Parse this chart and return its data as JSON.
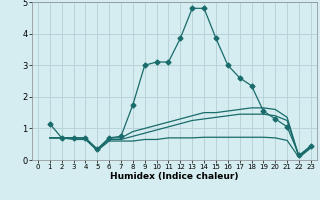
{
  "title": "",
  "xlabel": "Humidex (Indice chaleur)",
  "ylabel": "",
  "bg_color": "#d5edf0",
  "line_color": "#1a6b6b",
  "grid_color": "#b8d4d8",
  "xlim": [
    -0.5,
    23.5
  ],
  "ylim": [
    0,
    5
  ],
  "xticks": [
    0,
    1,
    2,
    3,
    4,
    5,
    6,
    7,
    8,
    9,
    10,
    11,
    12,
    13,
    14,
    15,
    16,
    17,
    18,
    19,
    20,
    21,
    22,
    23
  ],
  "yticks": [
    0,
    1,
    2,
    3,
    4,
    5
  ],
  "lines": [
    {
      "x": [
        1,
        2,
        3,
        4,
        5,
        6,
        7,
        8,
        9,
        10,
        11,
        12,
        13,
        14,
        15,
        16,
        17,
        18,
        19,
        20,
        21,
        22,
        23
      ],
      "y": [
        1.15,
        0.7,
        0.7,
        0.7,
        0.35,
        0.7,
        0.75,
        1.75,
        3.0,
        3.1,
        3.1,
        3.85,
        4.8,
        4.8,
        3.85,
        3.0,
        2.6,
        2.35,
        1.55,
        1.3,
        1.05,
        0.15,
        0.45
      ],
      "marker": "D",
      "markersize": 2.5
    },
    {
      "x": [
        1,
        2,
        3,
        4,
        5,
        6,
        7,
        8,
        9,
        10,
        11,
        12,
        13,
        14,
        15,
        16,
        17,
        18,
        19,
        20,
        21,
        22,
        23
      ],
      "y": [
        0.7,
        0.7,
        0.7,
        0.7,
        0.3,
        0.7,
        0.7,
        0.9,
        1.0,
        1.1,
        1.2,
        1.3,
        1.4,
        1.5,
        1.5,
        1.55,
        1.6,
        1.65,
        1.65,
        1.6,
        1.35,
        0.1,
        0.45
      ],
      "marker": null,
      "markersize": 0
    },
    {
      "x": [
        1,
        2,
        3,
        4,
        5,
        6,
        7,
        8,
        9,
        10,
        11,
        12,
        13,
        14,
        15,
        16,
        17,
        18,
        19,
        20,
        21,
        22,
        23
      ],
      "y": [
        0.7,
        0.7,
        0.7,
        0.7,
        0.3,
        0.65,
        0.65,
        0.75,
        0.85,
        0.95,
        1.05,
        1.15,
        1.25,
        1.3,
        1.35,
        1.4,
        1.45,
        1.45,
        1.45,
        1.4,
        1.25,
        0.1,
        0.42
      ],
      "marker": null,
      "markersize": 0
    },
    {
      "x": [
        1,
        2,
        3,
        4,
        5,
        6,
        7,
        8,
        9,
        10,
        11,
        12,
        13,
        14,
        15,
        16,
        17,
        18,
        19,
        20,
        21,
        22,
        23
      ],
      "y": [
        0.7,
        0.7,
        0.65,
        0.65,
        0.3,
        0.6,
        0.6,
        0.6,
        0.65,
        0.65,
        0.7,
        0.7,
        0.7,
        0.72,
        0.72,
        0.72,
        0.72,
        0.72,
        0.72,
        0.7,
        0.62,
        0.08,
        0.38
      ],
      "marker": null,
      "markersize": 0
    }
  ],
  "xlabel_fontsize": 6.5,
  "xlabel_fontweight": "bold",
  "xtick_fontsize": 5.0,
  "ytick_fontsize": 6.0
}
